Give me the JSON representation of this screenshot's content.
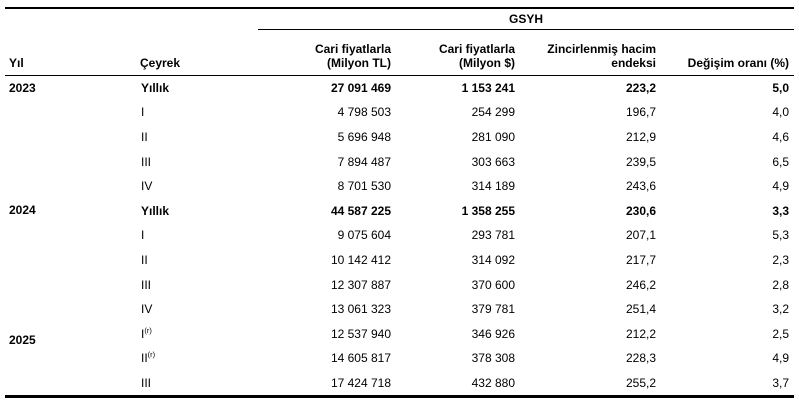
{
  "table": {
    "spanner": "GSYH",
    "annual_label": "Yıllık",
    "headers": {
      "year": "Yıl",
      "quarter": "Çeyrek",
      "current_tl": [
        "Cari fiyatlarla",
        "(Milyon TL)"
      ],
      "current_usd": [
        "Cari fiyatlarla",
        "(Milyon $)"
      ],
      "volume_index": [
        "Zincirlenmiş hacim",
        "endeksi"
      ],
      "change_rate": "Değişim oranı (%)"
    },
    "groups": [
      {
        "year": "2023",
        "rows": [
          {
            "quarter": "Yıllık",
            "sup": "",
            "tl": "27 091 469",
            "usd": "1 153 241",
            "index": "223,2",
            "change": "5,0"
          },
          {
            "quarter": "I",
            "sup": "",
            "tl": "4 798 503",
            "usd": "254 299",
            "index": "196,7",
            "change": "4,0"
          },
          {
            "quarter": "II",
            "sup": "",
            "tl": "5 696 948",
            "usd": "281 090",
            "index": "212,9",
            "change": "4,6"
          },
          {
            "quarter": "III",
            "sup": "",
            "tl": "7 894 487",
            "usd": "303 663",
            "index": "239,5",
            "change": "6,5"
          },
          {
            "quarter": "IV",
            "sup": "",
            "tl": "8 701 530",
            "usd": "314 189",
            "index": "243,6",
            "change": "4,9"
          }
        ]
      },
      {
        "year": "2024",
        "rows": [
          {
            "quarter": "Yıllık",
            "sup": "",
            "tl": "44 587 225",
            "usd": "1 358 255",
            "index": "230,6",
            "change": "3,3"
          },
          {
            "quarter": "I",
            "sup": "",
            "tl": "9 075 604",
            "usd": "293 781",
            "index": "207,1",
            "change": "5,3"
          },
          {
            "quarter": "II",
            "sup": "",
            "tl": "10 142 412",
            "usd": "314 092",
            "index": "217,7",
            "change": "2,3"
          },
          {
            "quarter": "III",
            "sup": "",
            "tl": "12 307 887",
            "usd": "370 600",
            "index": "246,2",
            "change": "2,8"
          },
          {
            "quarter": "IV",
            "sup": "",
            "tl": "13 061 323",
            "usd": "379 781",
            "index": "251,4",
            "change": "3,2"
          }
        ]
      },
      {
        "year": "2025",
        "rows": [
          {
            "quarter": "I",
            "sup": "(r)",
            "tl": "12 537 940",
            "usd": "346 926",
            "index": "212,2",
            "change": "2,5"
          },
          {
            "quarter": "II",
            "sup": "(r)",
            "tl": "14 605 817",
            "usd": "378 308",
            "index": "228,3",
            "change": "4,9"
          },
          {
            "quarter": "III",
            "sup": "",
            "tl": "17 424 718",
            "usd": "432 880",
            "index": "255,2",
            "change": "3,7"
          }
        ]
      }
    ]
  }
}
